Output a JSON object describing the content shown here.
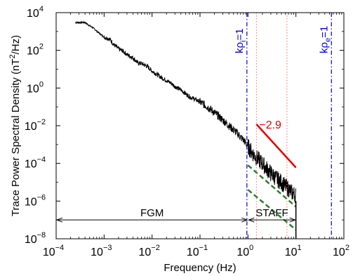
{
  "chart_data": {
    "type": "line",
    "xlabel": "Frequency (Hz)",
    "ylabel": "Trace Power Spectral Density (nT²/Hz)",
    "ylabel_parts": [
      "Trace Power Spectral Density (nT",
      "2",
      "/Hz)"
    ],
    "x_scale": "log",
    "y_scale": "log",
    "xlim": [
      0.0001,
      100
    ],
    "ylim": [
      1e-08,
      10000
    ],
    "x_ticks": [
      {
        "base": "10",
        "exp": "−4",
        "value": 0.0001
      },
      {
        "base": "10",
        "exp": "−3",
        "value": 0.001
      },
      {
        "base": "10",
        "exp": "−2",
        "value": 0.01
      },
      {
        "base": "10",
        "exp": "−1",
        "value": 0.1
      },
      {
        "base": "10",
        "exp": "0",
        "value": 1
      },
      {
        "base": "10",
        "exp": "1",
        "value": 10
      },
      {
        "base": "10",
        "exp": "2",
        "value": 100
      }
    ],
    "y_ticks": [
      {
        "base": "10",
        "exp": "−8",
        "value": 1e-08
      },
      {
        "base": "10",
        "exp": "−6",
        "value": 1e-06
      },
      {
        "base": "10",
        "exp": "−4",
        "value": 0.0001
      },
      {
        "base": "10",
        "exp": "−2",
        "value": 0.01
      },
      {
        "base": "10",
        "exp": "0",
        "value": 1
      },
      {
        "base": "10",
        "exp": "2",
        "value": 100
      },
      {
        "base": "10",
        "exp": "4",
        "value": 10000
      }
    ],
    "series": [
      {
        "color": "#000000",
        "style": "solid",
        "x": [
          0.00025,
          0.0004,
          0.0005,
          0.0006,
          0.0008,
          0.001,
          0.0013,
          0.0016,
          0.002,
          0.0025,
          0.003,
          0.004,
          0.005,
          0.006,
          0.008,
          0.01,
          0.013,
          0.016,
          0.02,
          0.025,
          0.03,
          0.04,
          0.05,
          0.06,
          0.08,
          0.1,
          0.13,
          0.16,
          0.2,
          0.25,
          0.3,
          0.4,
          0.5,
          0.6,
          0.7,
          0.8,
          0.9,
          1.0,
          1.2,
          1.5,
          2.0,
          2.5,
          3.0,
          4.0,
          5.0,
          6.0,
          7.0,
          8.0,
          9.0,
          10.0
        ],
        "y": [
          3000,
          3000,
          2000,
          1500,
          800,
          500,
          400,
          200,
          120,
          90,
          60,
          40,
          22,
          20,
          14,
          8,
          5,
          3.5,
          2.5,
          1.8,
          1.2,
          0.8,
          0.5,
          0.35,
          0.25,
          0.18,
          0.12,
          0.08,
          0.05,
          0.03,
          0.02,
          0.01,
          0.006,
          0.004,
          0.0025,
          0.0018,
          0.0012,
          0.0008,
          0.0004,
          0.0002,
          0.0001,
          5e-05,
          3e-05,
          1.5e-05,
          1e-05,
          6e-06,
          4.5e-06,
          3e-06,
          2.5e-06,
          2e-06
        ]
      }
    ],
    "fit_lines": [
      {
        "name": "slope",
        "label": "−2.9",
        "color": "#e00000",
        "style": "solid",
        "x": [
          1.5,
          10
        ],
        "y": [
          0.012,
          6e-05
        ]
      },
      {
        "name": "noise-upper",
        "color": "#2a7f2a",
        "style": "dashed",
        "x": [
          1,
          10
        ],
        "y": [
          8e-05,
          5e-07
        ]
      },
      {
        "name": "noise-lower",
        "color": "#2a7f2a",
        "style": "dashed",
        "x": [
          1,
          10
        ],
        "y": [
          4e-06,
          3e-08
        ]
      }
    ],
    "vlines": [
      {
        "x": 0.95,
        "color": "#0000cc",
        "style": "dashdot",
        "label_base": "kρ",
        "label_sub": "i",
        "label_tail": "=1"
      },
      {
        "x": 55,
        "color": "#0000cc",
        "style": "dashdot",
        "label_base": "kρ",
        "label_sub": "e",
        "label_tail": "=1"
      },
      {
        "x": 1.5,
        "color": "#ff6666",
        "style": "dotted"
      },
      {
        "x": 6.5,
        "color": "#ff6666",
        "style": "dotted"
      }
    ],
    "ranges": [
      {
        "label": "FGM",
        "x_start": 0.0001,
        "x_end": 1,
        "y": 1e-07
      },
      {
        "label": "STAFF",
        "x_start": 1,
        "x_end": 10,
        "y": 1e-07
      }
    ]
  }
}
